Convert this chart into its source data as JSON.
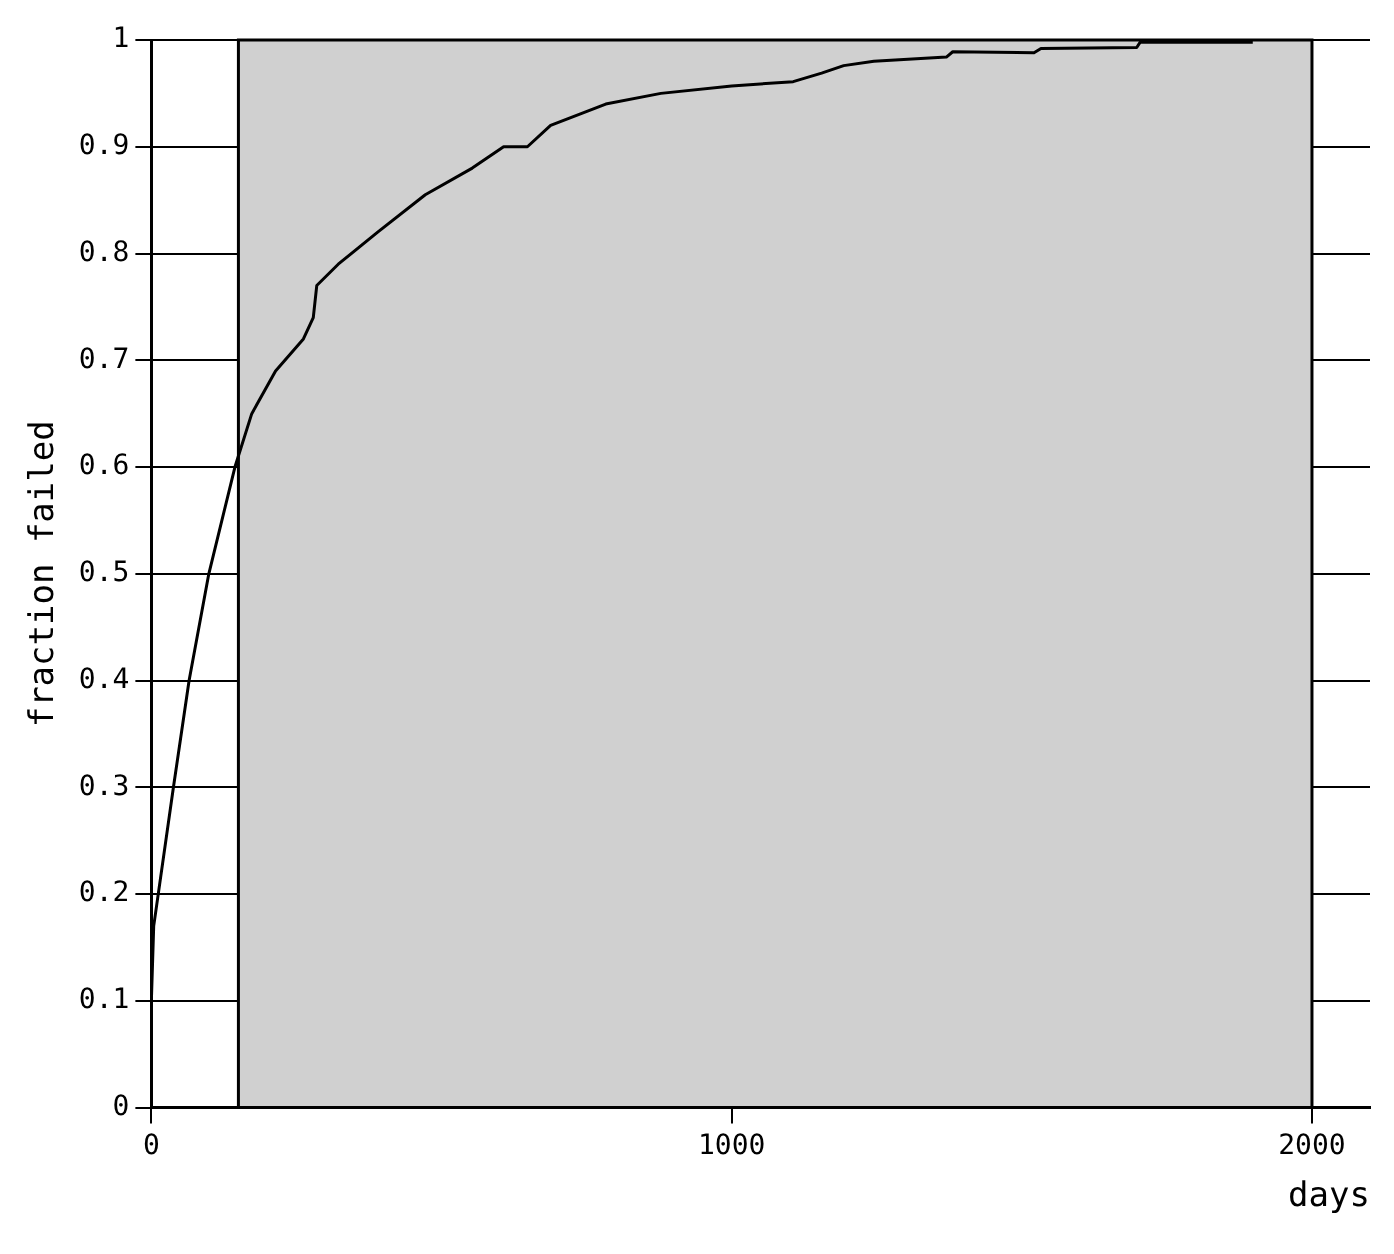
{
  "chart_data": {
    "type": "line",
    "xlabel": "days",
    "ylabel": "fraction failed",
    "series": [
      {
        "color": "#000000",
        "x": [
          0,
          4,
          38,
          65,
          99,
          144,
          173,
          214,
          262,
          279,
          285,
          322,
          390,
          472,
          553,
          607,
          648,
          688,
          783,
          878,
          1000,
          1106,
          1155,
          1193,
          1245,
          1370,
          1381,
          1521,
          1533,
          1698,
          1704,
          1898
        ],
        "values": [
          0.1,
          0.17,
          0.3,
          0.4,
          0.5,
          0.6,
          0.65,
          0.69,
          0.72,
          0.74,
          0.77,
          0.79,
          0.82,
          0.855,
          0.88,
          0.9,
          0.9,
          0.92,
          0.94,
          0.95,
          0.957,
          0.961,
          0.969,
          0.976,
          0.98,
          0.984,
          0.989,
          0.988,
          0.992,
          0.993,
          0.998,
          0.998
        ]
      }
    ],
    "xlim": [
      0,
      2100
    ],
    "xticks": [
      0,
      1000,
      2000
    ],
    "ylim": [
      0,
      1
    ],
    "yticks": [
      0,
      0.1,
      0.2,
      0.3,
      0.4,
      0.5,
      0.6,
      0.7,
      0.8,
      0.9,
      1
    ],
    "bands": [
      {
        "axis": "x",
        "from": 150,
        "to": 2000,
        "color": "#d0d0d0"
      }
    ],
    "grid": true,
    "legend": false,
    "marker": "none",
    "line_style": "solid"
  }
}
